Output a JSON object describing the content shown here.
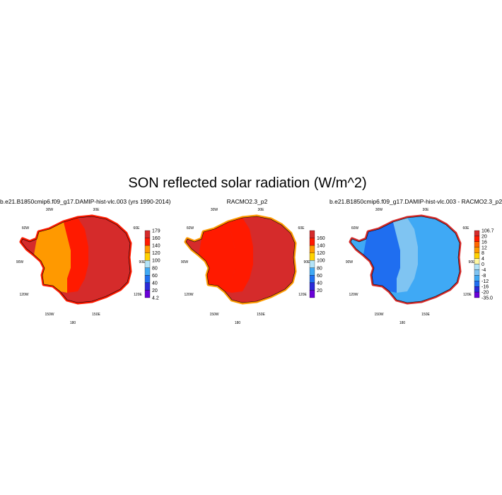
{
  "title": "SON reflected solar radiation (W/m^2)",
  "panels": [
    {
      "title": "b.e21.B1850cmip6.f09_g17.DAMIP-hist-vlc.003 (yrs 1990-2014)",
      "colorbar": {
        "labels": [
          "179",
          "160",
          "140",
          "120",
          "100",
          "80",
          "60",
          "40",
          "20",
          "4.2"
        ],
        "colors": [
          "#d52b2b",
          "#ff1a00",
          "#ff9900",
          "#ffd200",
          "#b3e3f7",
          "#3fa9f5",
          "#1f6ef0",
          "#2a2ad8",
          "#6a00d8"
        ]
      },
      "regions": {
        "west": "#ff9900",
        "east": "#d52b2b",
        "mid": "#ff1a00",
        "coast": "#ff1a00"
      }
    },
    {
      "title": "RACMO2.3_p2",
      "colorbar": {
        "labels": [
          "",
          "160",
          "140",
          "120",
          "100",
          "80",
          "60",
          "40",
          "20",
          ""
        ],
        "colors": [
          "#d52b2b",
          "#ff1a00",
          "#ff9900",
          "#ffd200",
          "#b3e3f7",
          "#3fa9f5",
          "#1f6ef0",
          "#2a2ad8",
          "#6a00d8"
        ]
      },
      "regions": {
        "west": "#ff1a00",
        "east": "#d52b2b",
        "mid": "#ff1a00",
        "coast": "#ff9900"
      }
    },
    {
      "title": "b.e21.B1850cmip6.f09_g17.DAMIP-hist-vlc.003 - RACMO2.3_p2",
      "colorbar": {
        "labels": [
          "106.7",
          "20",
          "16",
          "12",
          "8",
          "4",
          "0",
          "-4",
          "-8",
          "-12",
          "-16",
          "-20",
          "-35.0"
        ],
        "colors": [
          "#d52b2b",
          "#ff1a00",
          "#ff6600",
          "#ff9900",
          "#ffd200",
          "#fff7a0",
          "#b3e3f7",
          "#7fc4f2",
          "#3fa9f5",
          "#1f6ef0",
          "#2a2ad8",
          "#6a00d8"
        ]
      },
      "regions": {
        "west": "#1f6ef0",
        "east": "#3fa9f5",
        "mid": "#7fc4f2",
        "coast": "#d52b2b"
      }
    }
  ],
  "lon_labels": {
    "top_left": "30W",
    "top_right": "30E",
    "left_top": "60W",
    "left_mid": "90W",
    "left_bot": "120W",
    "right_top": "60E",
    "right_mid": "90E",
    "right_bot": "120E",
    "bot_left": "150W",
    "bot_right": "150E",
    "bottom": "180"
  }
}
